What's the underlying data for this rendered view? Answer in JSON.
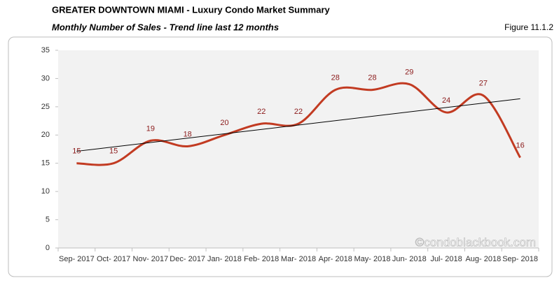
{
  "chart_data": {
    "type": "line",
    "title": "GREATER DOWNTOWN MIAMI - Luxury Condo Market Summary",
    "subtitle": "Monthly Number of Sales - Trend line last 12 months",
    "figure_label": "Figure 11.1.2",
    "watermark": "©condoblackbook.com",
    "categories": [
      "Sep- 2017",
      "Oct- 2017",
      "Nov- 2017",
      "Dec- 2017",
      "Jan- 2018",
      "Feb- 2018",
      "Mar- 2018",
      "Apr- 2018",
      "May- 2018",
      "Jun- 2018",
      "Jul- 2018",
      "Aug- 2018",
      "Sep- 2018"
    ],
    "series": [
      {
        "name": "Number of Sales",
        "color": "#c23b22",
        "values": [
          15,
          15,
          19,
          18,
          20,
          22,
          22,
          28,
          28,
          29,
          24,
          27,
          16
        ]
      }
    ],
    "ylim": [
      0,
      35
    ],
    "yticks": [
      0,
      5,
      10,
      15,
      20,
      25,
      30,
      35
    ],
    "trendline": true,
    "trendline_color": "#000000",
    "data_labels": true
  }
}
